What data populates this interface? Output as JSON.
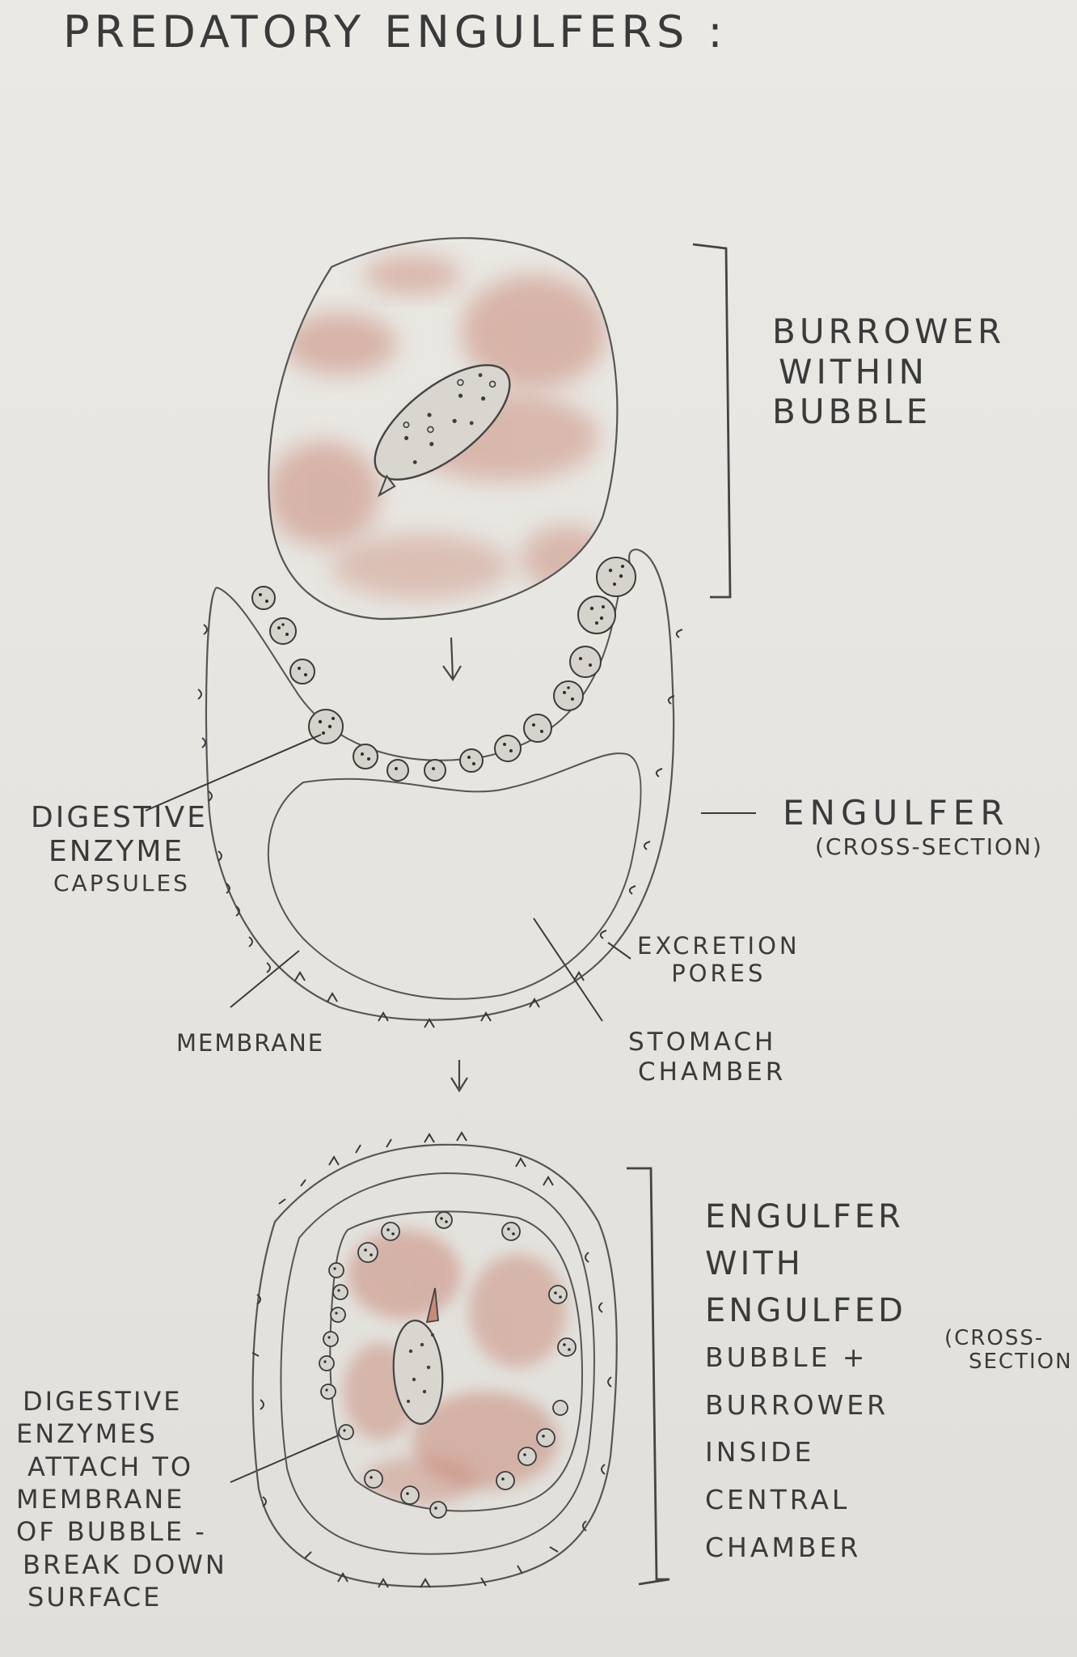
{
  "title": "PREDATORY ENGULFERS :",
  "labels": {
    "burrower_within_bubble": [
      "BURROWER",
      "WITHIN",
      "BUBBLE"
    ],
    "digestive_enzyme_capsules": [
      "DIGESTIVE",
      "ENZYME",
      "CAPSULES"
    ],
    "engulfer": "ENGULFER",
    "engulfer_cross_section": "(CROSS-SECTION)",
    "excretion_pores": [
      "EXCRETION",
      "PORES"
    ],
    "membrane": "MEMBRANE",
    "stomach_chamber": [
      "STOMACH",
      "CHAMBER"
    ],
    "engulfer_with_engulfed": [
      "ENGULFER",
      "WITH",
      "ENGULFED",
      "BUBBLE +",
      "BURROWER",
      "INSIDE",
      "CENTRAL",
      "CHAMBER"
    ],
    "cross_section_2": [
      "(CROSS-",
      "SECTION"
    ],
    "enzymes_attach": [
      "DIGESTIVE",
      "ENZYMES",
      "ATTACH TO",
      "MEMBRANE",
      "OF BUBBLE -",
      "BREAK DOWN",
      "SURFACE"
    ]
  },
  "colors": {
    "pencil": "#4a4a4a",
    "ink": "#3a3a3a",
    "red_pencil": "#c98a7a",
    "paper": "#e9e7e2"
  }
}
